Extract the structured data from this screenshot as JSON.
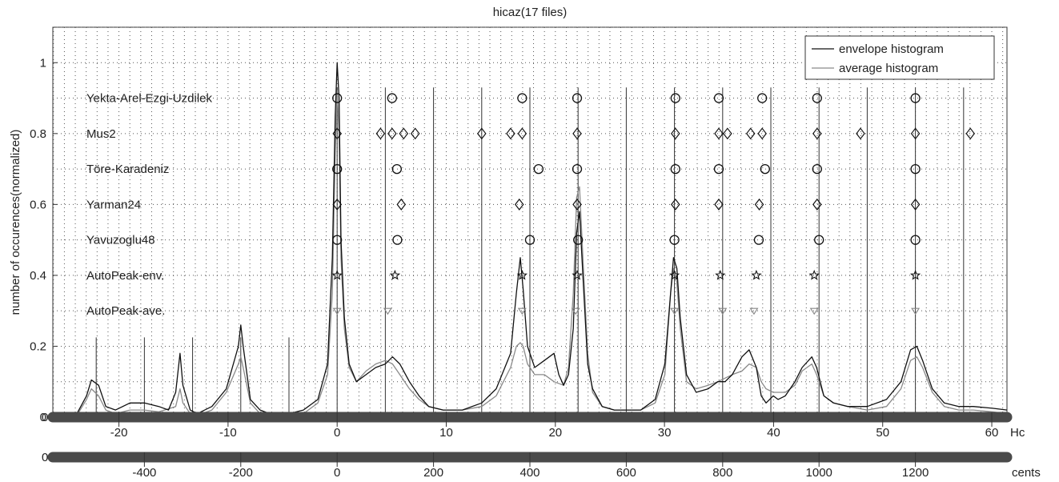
{
  "chart_data": {
    "type": "line",
    "title": "hicaz(17 files)",
    "ylabel": "number of occurences(normalized)",
    "ylim": [
      0,
      1.1
    ],
    "y_ticks": [
      "0",
      "0.2",
      "0.4",
      "0.6",
      "0.8",
      "1"
    ],
    "axes": [
      {
        "name": "Hc",
        "label": "Hc",
        "ticks": [
          "-20",
          "-10",
          "0",
          "10",
          "20",
          "30",
          "40",
          "50",
          "60"
        ],
        "tick_values": [
          -20,
          -10,
          0,
          10,
          20,
          30,
          40,
          50,
          60
        ]
      },
      {
        "name": "cents",
        "label": "cents",
        "ticks": [
          "-400",
          "-200",
          "0",
          "200",
          "400",
          "600",
          "800",
          "1000",
          "1200"
        ],
        "tick_values": [
          -400,
          -200,
          0,
          200,
          400,
          600,
          800,
          1000,
          1200
        ]
      }
    ],
    "xlim_cents": [
      -590,
      1390
    ],
    "grid": "dotted",
    "legend_position": "top-right",
    "series": [
      {
        "name": "envelope histogram",
        "color": "#111111",
        "points": [
          [
            -540,
            0.01
          ],
          [
            -520,
            0.06
          ],
          [
            -510,
            0.105
          ],
          [
            -495,
            0.09
          ],
          [
            -480,
            0.03
          ],
          [
            -460,
            0.02
          ],
          [
            -430,
            0.04
          ],
          [
            -400,
            0.04
          ],
          [
            -370,
            0.03
          ],
          [
            -350,
            0.02
          ],
          [
            -335,
            0.07
          ],
          [
            -326,
            0.18
          ],
          [
            -320,
            0.09
          ],
          [
            -305,
            0.02
          ],
          [
            -290,
            0.01
          ],
          [
            -260,
            0.03
          ],
          [
            -230,
            0.08
          ],
          [
            -205,
            0.2
          ],
          [
            -200,
            0.26
          ],
          [
            -195,
            0.2
          ],
          [
            -180,
            0.05
          ],
          [
            -160,
            0.02
          ],
          [
            -140,
            0.01
          ],
          [
            -100,
            0.01
          ],
          [
            -70,
            0.02
          ],
          [
            -40,
            0.05
          ],
          [
            -20,
            0.15
          ],
          [
            -10,
            0.45
          ],
          [
            -4,
            0.85
          ],
          [
            0,
            1.0
          ],
          [
            4,
            0.9
          ],
          [
            8,
            0.5
          ],
          [
            15,
            0.28
          ],
          [
            25,
            0.15
          ],
          [
            40,
            0.1
          ],
          [
            60,
            0.12
          ],
          [
            80,
            0.14
          ],
          [
            100,
            0.15
          ],
          [
            115,
            0.17
          ],
          [
            130,
            0.15
          ],
          [
            150,
            0.1
          ],
          [
            170,
            0.06
          ],
          [
            190,
            0.03
          ],
          [
            220,
            0.02
          ],
          [
            260,
            0.02
          ],
          [
            300,
            0.04
          ],
          [
            330,
            0.08
          ],
          [
            360,
            0.18
          ],
          [
            372,
            0.35
          ],
          [
            380,
            0.45
          ],
          [
            386,
            0.36
          ],
          [
            395,
            0.2
          ],
          [
            410,
            0.14
          ],
          [
            430,
            0.16
          ],
          [
            450,
            0.18
          ],
          [
            460,
            0.12
          ],
          [
            470,
            0.09
          ],
          [
            480,
            0.12
          ],
          [
            490,
            0.25
          ],
          [
            497,
            0.52
          ],
          [
            503,
            0.58
          ],
          [
            510,
            0.4
          ],
          [
            520,
            0.15
          ],
          [
            530,
            0.08
          ],
          [
            550,
            0.03
          ],
          [
            575,
            0.02
          ],
          [
            600,
            0.02
          ],
          [
            630,
            0.02
          ],
          [
            660,
            0.05
          ],
          [
            680,
            0.15
          ],
          [
            692,
            0.35
          ],
          [
            698,
            0.45
          ],
          [
            705,
            0.42
          ],
          [
            712,
            0.28
          ],
          [
            725,
            0.12
          ],
          [
            745,
            0.07
          ],
          [
            770,
            0.08
          ],
          [
            790,
            0.1
          ],
          [
            805,
            0.1
          ],
          [
            820,
            0.12
          ],
          [
            840,
            0.17
          ],
          [
            855,
            0.19
          ],
          [
            870,
            0.14
          ],
          [
            880,
            0.06
          ],
          [
            890,
            0.04
          ],
          [
            905,
            0.06
          ],
          [
            915,
            0.05
          ],
          [
            930,
            0.06
          ],
          [
            950,
            0.1
          ],
          [
            965,
            0.14
          ],
          [
            985,
            0.17
          ],
          [
            995,
            0.14
          ],
          [
            1010,
            0.06
          ],
          [
            1030,
            0.04
          ],
          [
            1060,
            0.03
          ],
          [
            1100,
            0.03
          ],
          [
            1140,
            0.05
          ],
          [
            1170,
            0.1
          ],
          [
            1190,
            0.19
          ],
          [
            1203,
            0.2
          ],
          [
            1215,
            0.16
          ],
          [
            1235,
            0.08
          ],
          [
            1260,
            0.04
          ],
          [
            1290,
            0.03
          ],
          [
            1320,
            0.03
          ],
          [
            1360,
            0.025
          ],
          [
            1390,
            0.02
          ]
        ]
      },
      {
        "name": "average histogram",
        "color": "#8a8a8a",
        "points": [
          [
            -540,
            0.005
          ],
          [
            -520,
            0.05
          ],
          [
            -510,
            0.08
          ],
          [
            -495,
            0.06
          ],
          [
            -480,
            0.02
          ],
          [
            -460,
            0.01
          ],
          [
            -430,
            0.02
          ],
          [
            -400,
            0.02
          ],
          [
            -370,
            0.015
          ],
          [
            -335,
            0.03
          ],
          [
            -326,
            0.08
          ],
          [
            -320,
            0.04
          ],
          [
            -305,
            0.01
          ],
          [
            -290,
            0.005
          ],
          [
            -260,
            0.02
          ],
          [
            -230,
            0.07
          ],
          [
            -205,
            0.15
          ],
          [
            -200,
            0.17
          ],
          [
            -195,
            0.14
          ],
          [
            -180,
            0.04
          ],
          [
            -160,
            0.01
          ],
          [
            -100,
            0.005
          ],
          [
            -70,
            0.01
          ],
          [
            -40,
            0.04
          ],
          [
            -20,
            0.12
          ],
          [
            -10,
            0.35
          ],
          [
            -4,
            0.75
          ],
          [
            0,
            0.92
          ],
          [
            4,
            0.8
          ],
          [
            8,
            0.45
          ],
          [
            15,
            0.25
          ],
          [
            25,
            0.14
          ],
          [
            40,
            0.1
          ],
          [
            60,
            0.13
          ],
          [
            80,
            0.15
          ],
          [
            100,
            0.16
          ],
          [
            115,
            0.15
          ],
          [
            130,
            0.12
          ],
          [
            150,
            0.08
          ],
          [
            170,
            0.05
          ],
          [
            190,
            0.03
          ],
          [
            220,
            0.02
          ],
          [
            260,
            0.02
          ],
          [
            300,
            0.03
          ],
          [
            330,
            0.06
          ],
          [
            360,
            0.14
          ],
          [
            372,
            0.2
          ],
          [
            380,
            0.21
          ],
          [
            386,
            0.2
          ],
          [
            395,
            0.15
          ],
          [
            410,
            0.12
          ],
          [
            430,
            0.12
          ],
          [
            450,
            0.1
          ],
          [
            470,
            0.09
          ],
          [
            480,
            0.14
          ],
          [
            490,
            0.35
          ],
          [
            497,
            0.62
          ],
          [
            503,
            0.65
          ],
          [
            510,
            0.45
          ],
          [
            520,
            0.18
          ],
          [
            530,
            0.07
          ],
          [
            550,
            0.03
          ],
          [
            575,
            0.02
          ],
          [
            600,
            0.02
          ],
          [
            630,
            0.02
          ],
          [
            660,
            0.04
          ],
          [
            680,
            0.12
          ],
          [
            692,
            0.35
          ],
          [
            698,
            0.42
          ],
          [
            705,
            0.38
          ],
          [
            712,
            0.25
          ],
          [
            725,
            0.1
          ],
          [
            745,
            0.08
          ],
          [
            770,
            0.09
          ],
          [
            790,
            0.1
          ],
          [
            805,
            0.11
          ],
          [
            820,
            0.12
          ],
          [
            840,
            0.13
          ],
          [
            855,
            0.15
          ],
          [
            870,
            0.14
          ],
          [
            880,
            0.1
          ],
          [
            890,
            0.08
          ],
          [
            905,
            0.07
          ],
          [
            930,
            0.07
          ],
          [
            950,
            0.09
          ],
          [
            965,
            0.13
          ],
          [
            985,
            0.15
          ],
          [
            995,
            0.12
          ],
          [
            1010,
            0.06
          ],
          [
            1030,
            0.04
          ],
          [
            1060,
            0.03
          ],
          [
            1100,
            0.02
          ],
          [
            1140,
            0.03
          ],
          [
            1170,
            0.08
          ],
          [
            1190,
            0.16
          ],
          [
            1203,
            0.17
          ],
          [
            1215,
            0.14
          ],
          [
            1235,
            0.07
          ],
          [
            1260,
            0.03
          ],
          [
            1290,
            0.02
          ],
          [
            1320,
            0.02
          ],
          [
            1360,
            0.015
          ],
          [
            1390,
            0.01
          ]
        ]
      }
    ],
    "annotations": [
      {
        "name": "Yekta-Arel-Ezgi-Uzdilek",
        "y": 0.9,
        "symbol": "circle",
        "color": "#111111",
        "x": [
          0,
          114,
          384,
          498,
          702,
          792,
          882,
          996,
          1200
        ]
      },
      {
        "name": "Mus2",
        "y": 0.8,
        "symbol": "diamond",
        "color": "#111111",
        "x": [
          0,
          90,
          114,
          138,
          162,
          300,
          360,
          384,
          498,
          702,
          792,
          810,
          858,
          882,
          996,
          1086,
          1200,
          1314
        ]
      },
      {
        "name": "Töre-Karadeniz",
        "y": 0.7,
        "symbol": "circle",
        "color": "#111111",
        "x": [
          0,
          124,
          418,
          498,
          702,
          792,
          888,
          996,
          1200
        ]
      },
      {
        "name": "Yarman24",
        "y": 0.6,
        "symbol": "diamond",
        "color": "#111111",
        "x": [
          0,
          133,
          378,
          498,
          702,
          792,
          876,
          996,
          1200
        ]
      },
      {
        "name": "Yavuzoglu48",
        "y": 0.5,
        "symbol": "circle",
        "color": "#111111",
        "x": [
          0,
          125,
          400,
          500,
          700,
          875,
          1000,
          1200
        ]
      },
      {
        "name": "AutoPeak-env.",
        "y": 0.4,
        "symbol": "star",
        "color": "#111111",
        "x": [
          0,
          120,
          384,
          498,
          700,
          795,
          870,
          990,
          1200
        ]
      },
      {
        "name": "AutoPeak-ave.",
        "y": 0.3,
        "symbol": "triangle",
        "color": "#888888",
        "x": [
          0,
          105,
          384,
          495,
          700,
          800,
          865,
          990,
          1200
        ]
      }
    ],
    "vertical_lines_cents": [
      -500,
      -400,
      -300,
      -200,
      -100,
      0,
      100,
      200,
      300,
      400,
      500,
      600,
      700,
      800,
      900,
      1000,
      1100,
      1200,
      1300
    ]
  }
}
